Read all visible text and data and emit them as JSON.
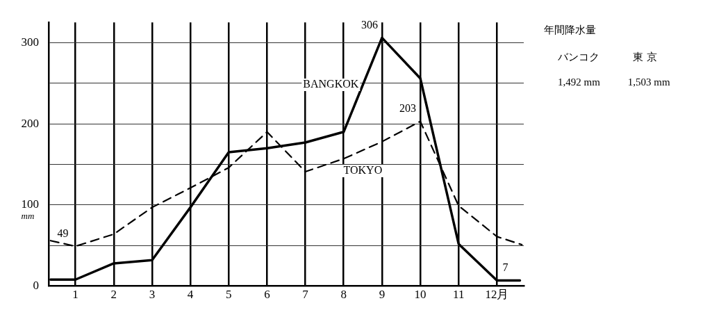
{
  "chart_data": {
    "type": "line",
    "xlim": [
      0.3,
      12.7
    ],
    "xticks": [
      1,
      2,
      3,
      4,
      5,
      6,
      7,
      8,
      9,
      10,
      11,
      {
        "value": 12,
        "label": "12月"
      }
    ],
    "ylim": [
      0,
      325
    ],
    "yticks": [
      0,
      {
        "value": 50,
        "label": null
      },
      100,
      {
        "value": 150,
        "label": null
      },
      200,
      {
        "value": 250,
        "label": null
      },
      300
    ],
    "ylabel": "mm",
    "grid": true,
    "legend": false,
    "marker": "none",
    "series": [
      {
        "name": "BANGKOK",
        "color": "#000000",
        "line_style": "solid",
        "x": [
          0.35,
          1,
          2,
          3,
          4,
          5,
          6,
          7,
          8,
          9,
          10,
          11,
          12,
          12.6
        ],
        "values": [
          8,
          8,
          28,
          32,
          97,
          165,
          170,
          177,
          190,
          306,
          256,
          52,
          7,
          7
        ]
      },
      {
        "name": "TOKYO",
        "color": "#000000",
        "line_style": "dashed",
        "x": [
          0.35,
          1,
          2,
          3,
          4,
          5,
          6,
          7,
          8,
          9,
          10,
          11,
          12,
          12.65
        ],
        "values": [
          56,
          49,
          64,
          97,
          121,
          146,
          190,
          141,
          157,
          178,
          203,
          99,
          61,
          51
        ]
      }
    ],
    "annotations": [
      {
        "text": "306",
        "x": 9,
        "y": 306
      },
      {
        "text": "203",
        "x": 10,
        "y": 203
      },
      {
        "text": "49",
        "x": 1,
        "y": 49
      },
      {
        "text": "7",
        "x": 12,
        "y": 7
      },
      "年間降水量",
      "バンコク",
      "東 京",
      "1,492 mm",
      "1,503 mm"
    ]
  }
}
